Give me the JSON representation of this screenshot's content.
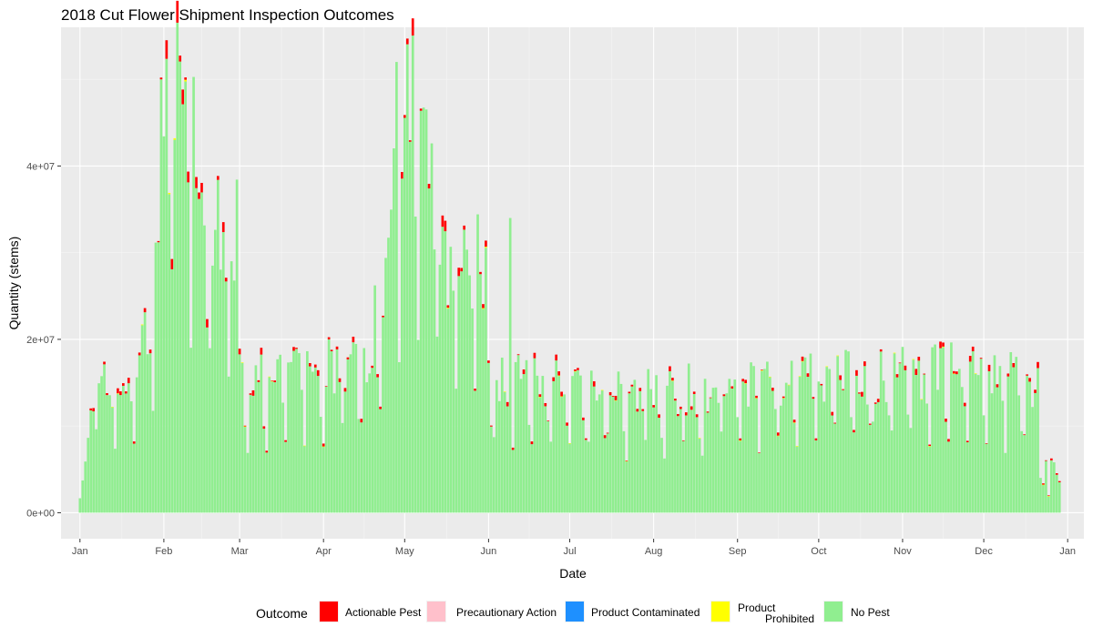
{
  "chart_data": {
    "type": "bar",
    "stacked": true,
    "title": "2018 Cut Flower Shipment Inspection Outcomes",
    "xlabel": "Date",
    "ylabel": "Quantity (stems)",
    "x_range": [
      "2017-12-25",
      "2019-01-07"
    ],
    "ylim": [
      -3000000,
      56000000
    ],
    "x_ticks": [
      "Jan",
      "Feb",
      "Mar",
      "Apr",
      "May",
      "Jun",
      "Jul",
      "Aug",
      "Sep",
      "Oct",
      "Nov",
      "Dec",
      "Jan"
    ],
    "y_ticks": [
      "0e+00",
      "2e+07",
      "4e+07"
    ],
    "y_tick_values": [
      0,
      20000000,
      40000000
    ],
    "grid": true,
    "panel_background": "#ebebeb",
    "legend": {
      "title": "Outcome",
      "position": "bottom",
      "entries": [
        {
          "label": "Actionable Pest",
          "color": "#ff0000"
        },
        {
          "label": "Precautionary Action",
          "color": "#ffc0cb"
        },
        {
          "label": "Product Contaminated",
          "color": "#1e90ff"
        },
        {
          "label": "Product\nProhibited",
          "color": "#ffff00"
        },
        {
          "label": "No Pest",
          "color": "#90ee90"
        }
      ]
    },
    "monthly_mean_no_pest": {
      "Jan": 15000000,
      "Feb": 33000000,
      "Mar": 16000000,
      "Apr": 17500000,
      "May": 30000000,
      "Jun": 15500000,
      "Jul": 14000000,
      "Aug": 14500000,
      "Sep": 15500000,
      "Oct": 16000000,
      "Nov": 16500000,
      "Dec": 15500000
    },
    "peaks": [
      {
        "date": "2018-01-31",
        "total": 50200000
      },
      {
        "date": "2018-02-05",
        "total": 43200000
      },
      {
        "date": "2018-04-28",
        "total": 52000000
      },
      {
        "date": "2018-05-02",
        "total": 54700000
      },
      {
        "date": "2018-06-09",
        "total": 34000000
      },
      {
        "date": "2018-12-25",
        "total": 2000000
      }
    ]
  }
}
